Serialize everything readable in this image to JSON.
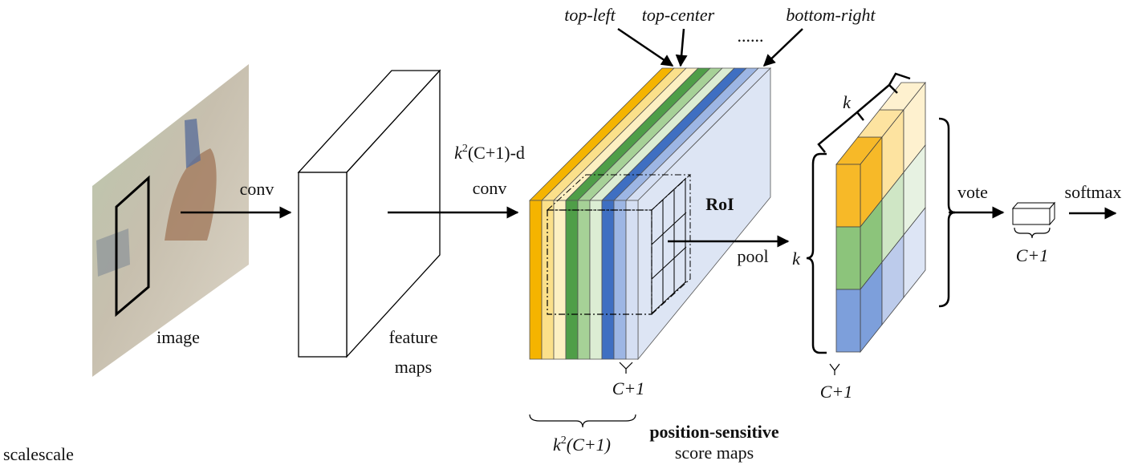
{
  "labels": {
    "conv": "conv",
    "image": "image",
    "feature_maps": [
      "feature",
      "maps"
    ],
    "score_conv": {
      "k": "k",
      "sup": "2",
      "rest": "(C+1)-d",
      "line2": "conv"
    },
    "top_left": "top-left",
    "top_center": "top-center",
    "dots": "......",
    "bottom_right": "bottom-right",
    "roi": "RoI",
    "pool": "pool",
    "k_top": "k",
    "k_side": "k",
    "c1_maps": "C+1",
    "c1_output": "C+1",
    "vote": "vote",
    "c1_vote": "C+1",
    "softmax": "softmax",
    "group": {
      "k": "k",
      "sup": "2",
      "rest": "(C+1)"
    },
    "position_sensitive": "position-sensitive",
    "score_maps": "score maps",
    "footer": "scalescale"
  }
}
